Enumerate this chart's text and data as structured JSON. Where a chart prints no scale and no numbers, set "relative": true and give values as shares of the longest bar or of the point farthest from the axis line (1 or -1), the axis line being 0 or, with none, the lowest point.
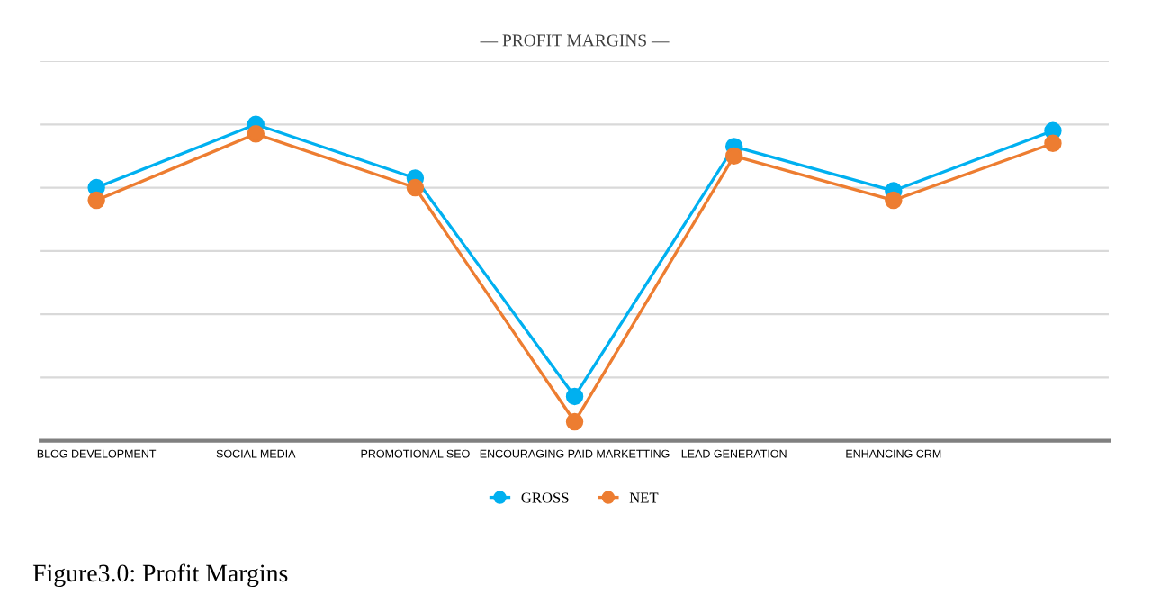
{
  "chart_data": {
    "type": "line",
    "title": "— PROFIT MARGINS —",
    "relative": true,
    "categories": [
      "BLOG DEVELOPMENT",
      "SOCIAL MEDIA",
      "PROMOTIONAL SEO",
      "ENCOURAGING PAID MARKETTING",
      "LEAD GENERATION",
      "ENHANCING CRM",
      null
    ],
    "series": [
      {
        "name": "GROSS",
        "color": "#00b0f0",
        "values": [
          0.8,
          1,
          0.83,
          0.14,
          0.93,
          0.79,
          0.98
        ]
      },
      {
        "name": "NET",
        "color": "#ed7d31",
        "values": [
          0.76,
          0.97,
          0.8,
          0.06,
          0.9,
          0.76,
          0.94
        ]
      }
    ],
    "marker": "circle",
    "line_style": "solid",
    "grid": "y",
    "legend": "bottom",
    "annotations": [
      "Figure3.0: Profit Margins"
    ]
  }
}
